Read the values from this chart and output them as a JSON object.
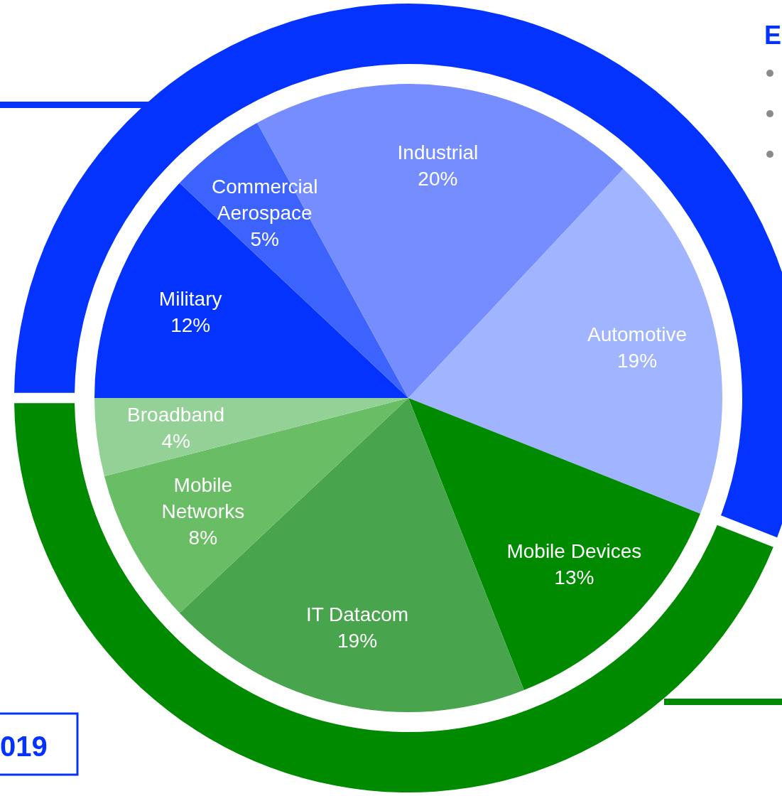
{
  "chart_data": [
    {
      "type": "pie",
      "annotations": [
        "E",
        "019"
      ],
      "categories": [
        "Military",
        "Commercial Aerospace",
        "Industrial",
        "Automotive",
        "Mobile Devices",
        "IT Datacom",
        "Mobile Networks",
        "Broadband"
      ],
      "values": [
        12,
        5,
        20,
        19,
        13,
        19,
        8,
        4
      ],
      "value_labels": [
        "12%",
        "5%",
        "20%",
        "19%",
        "13%",
        "19%",
        "8%",
        "4%"
      ],
      "colors": [
        "#0433ff",
        "#3d63ff",
        "#768dff",
        "#a0b4ff",
        "#008a00",
        "#48a44d",
        "#69bd64",
        "#93d196"
      ]
    },
    {
      "type": "donut",
      "categories": [
        null,
        null
      ],
      "values": [
        56,
        44
      ],
      "colors": [
        "#0433ff",
        "#008a00"
      ]
    }
  ]
}
